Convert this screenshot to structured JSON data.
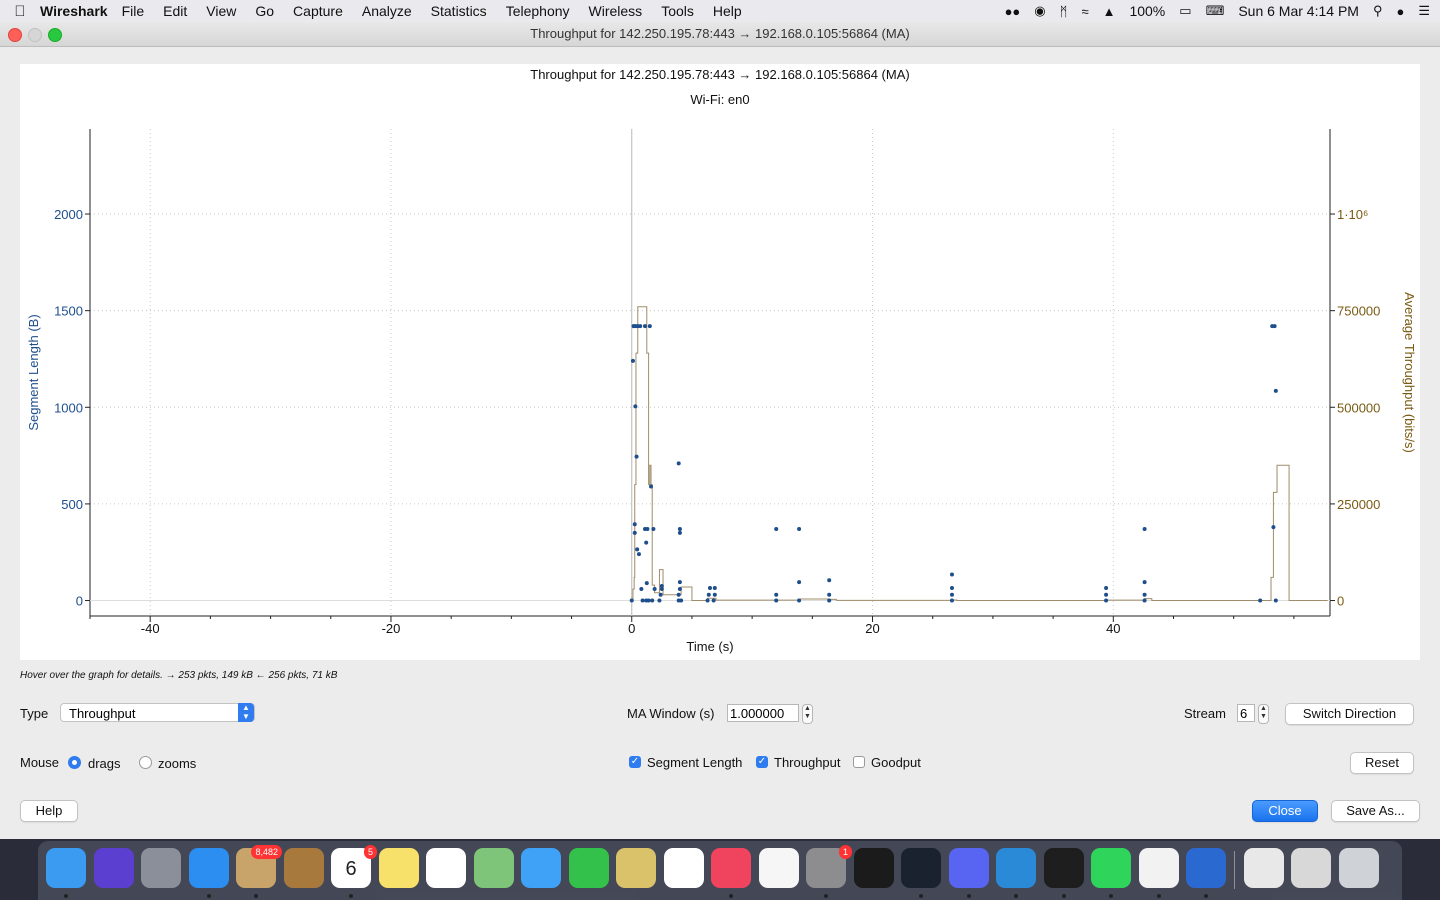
{
  "menubar": {
    "app_name": "Wireshark",
    "items": [
      "File",
      "Edit",
      "View",
      "Go",
      "Capture",
      "Analyze",
      "Statistics",
      "Telephony",
      "Wireless",
      "Tools",
      "Help"
    ],
    "battery": "100%",
    "datetime": "Sun 6 Mar  4:14 PM"
  },
  "window": {
    "title": "Throughput for 142.250.195.78:443 → 192.168.0.105:56864 (MA)"
  },
  "chart_data": {
    "type": "scatter",
    "title": "Throughput for 142.250.195.78:443 → 192.168.0.105:56864 (MA)",
    "subtitle": "Wi-Fi: en0",
    "xlabel": "Time (s)",
    "ylabel": "Segment Length (B)",
    "y2label": "Average Throughput (bits/s)",
    "xlim": [
      -45,
      58
    ],
    "ylim": [
      -80,
      2440
    ],
    "y2lim": [
      -40000,
      1220000
    ],
    "x_ticks": [
      -40,
      -20,
      0,
      20,
      40
    ],
    "y_ticks": [
      0,
      500,
      1000,
      1500,
      2000
    ],
    "y2_ticks": [
      0,
      250000,
      500000,
      750000
    ],
    "y2_tick_labels": [
      "0",
      "250000",
      "500000",
      "750000",
      "1·10⁶"
    ],
    "y2_tick_values_all": [
      0,
      250000,
      500000,
      750000,
      1000000
    ],
    "grid": true,
    "colors": {
      "segment": "#1f4e8c",
      "throughput": "#a08c6a",
      "y2axis": "#7a5a12"
    },
    "series": [
      {
        "name": "Segment Length",
        "axis": "left",
        "points": [
          [
            0.0,
            0
          ],
          [
            0.1,
            1240
          ],
          [
            0.15,
            1420
          ],
          [
            0.2,
            1420
          ],
          [
            0.25,
            350
          ],
          [
            0.25,
            395
          ],
          [
            0.3,
            1005
          ],
          [
            0.35,
            1420
          ],
          [
            0.4,
            745
          ],
          [
            0.5,
            1420
          ],
          [
            0.45,
            265
          ],
          [
            0.6,
            240
          ],
          [
            0.7,
            1420
          ],
          [
            0.8,
            60
          ],
          [
            0.9,
            0
          ],
          [
            1.1,
            1420
          ],
          [
            1.1,
            370
          ],
          [
            1.2,
            0
          ],
          [
            1.2,
            300
          ],
          [
            1.25,
            90
          ],
          [
            1.3,
            370
          ],
          [
            1.4,
            0
          ],
          [
            1.5,
            1420
          ],
          [
            1.6,
            590
          ],
          [
            1.7,
            0
          ],
          [
            1.8,
            370
          ],
          [
            1.9,
            60
          ],
          [
            2.3,
            0
          ],
          [
            2.4,
            30
          ],
          [
            2.5,
            60
          ],
          [
            2.5,
            75
          ],
          [
            3.9,
            0
          ],
          [
            3.9,
            30
          ],
          [
            4.0,
            60
          ],
          [
            4.0,
            95
          ],
          [
            4.0,
            370
          ],
          [
            4.0,
            350
          ],
          [
            3.9,
            710
          ],
          [
            4.1,
            0
          ],
          [
            6.3,
            0
          ],
          [
            6.4,
            30
          ],
          [
            6.5,
            65
          ],
          [
            6.8,
            0
          ],
          [
            6.9,
            30
          ],
          [
            6.9,
            65
          ],
          [
            12.0,
            0
          ],
          [
            12.0,
            30
          ],
          [
            12.0,
            370
          ],
          [
            13.9,
            0
          ],
          [
            13.9,
            95
          ],
          [
            13.9,
            370
          ],
          [
            16.4,
            0
          ],
          [
            16.4,
            30
          ],
          [
            16.4,
            105
          ],
          [
            26.6,
            0
          ],
          [
            26.6,
            30
          ],
          [
            26.6,
            65
          ],
          [
            26.6,
            135
          ],
          [
            39.4,
            0
          ],
          [
            39.4,
            30
          ],
          [
            39.4,
            65
          ],
          [
            42.6,
            0
          ],
          [
            42.6,
            30
          ],
          [
            42.6,
            95
          ],
          [
            42.6,
            370
          ],
          [
            52.2,
            0
          ],
          [
            53.2,
            1420
          ],
          [
            53.4,
            1420
          ],
          [
            53.3,
            380
          ],
          [
            53.5,
            1085
          ],
          [
            53.5,
            0
          ]
        ]
      },
      {
        "name": "Throughput",
        "axis": "right",
        "points": [
          [
            0,
            0
          ],
          [
            0.1,
            30000
          ],
          [
            0.2,
            60000
          ],
          [
            0.25,
            300000
          ],
          [
            0.35,
            640000
          ],
          [
            0.5,
            760000
          ],
          [
            0.8,
            760000
          ],
          [
            1.1,
            760000
          ],
          [
            1.25,
            640000
          ],
          [
            1.4,
            300000
          ],
          [
            1.5,
            350000
          ],
          [
            1.6,
            300000
          ],
          [
            1.7,
            40000
          ],
          [
            1.9,
            20000
          ],
          [
            2.3,
            80000
          ],
          [
            2.6,
            15000
          ],
          [
            3.9,
            15000
          ],
          [
            4.1,
            35000
          ],
          [
            5,
            0
          ],
          [
            6.3,
            6000
          ],
          [
            7,
            1000
          ],
          [
            12,
            1000
          ],
          [
            14,
            4000
          ],
          [
            16.4,
            3000
          ],
          [
            17,
            500
          ],
          [
            26.6,
            1500
          ],
          [
            27,
            0
          ],
          [
            39.4,
            1000
          ],
          [
            42.6,
            5000
          ],
          [
            43.2,
            0
          ],
          [
            52.8,
            0
          ],
          [
            53.1,
            60000
          ],
          [
            53.3,
            280000
          ],
          [
            53.6,
            350000
          ],
          [
            54.5,
            350000
          ],
          [
            54.6,
            0
          ],
          [
            57.8,
            0
          ]
        ]
      }
    ]
  },
  "status": {
    "hover_text": "Hover over the graph for details. → 253 pkts, 149 kB ← 256 pkts, 71 kB"
  },
  "controls": {
    "type_label": "Type",
    "type_value": "Throughput",
    "ma_window_label": "MA Window (s)",
    "ma_window_value": "1.000000",
    "stream_label": "Stream",
    "stream_value": "6",
    "switch_direction": "Switch Direction",
    "mouse_label": "Mouse",
    "mouse_drags": "drags",
    "mouse_zooms": "zooms",
    "mouse_selected": "drags",
    "segment_length": "Segment Length",
    "segment_length_checked": true,
    "throughput": "Throughput",
    "throughput_checked": true,
    "goodput": "Goodput",
    "goodput_checked": false,
    "reset": "Reset",
    "help": "Help",
    "close": "Close",
    "save_as": "Save As..."
  },
  "dock": {
    "items": [
      {
        "name": "finder",
        "color": "#3a9bf0",
        "running": true
      },
      {
        "name": "siri",
        "color": "#5b3fd1",
        "running": false
      },
      {
        "name": "launchpad",
        "color": "#8a8f99",
        "running": false
      },
      {
        "name": "safari",
        "color": "#2c8ef0",
        "running": true
      },
      {
        "name": "mail",
        "color": "#c8a46a",
        "running": true,
        "badge": "8,482"
      },
      {
        "name": "contacts",
        "color": "#a7793c",
        "running": false
      },
      {
        "name": "calendar",
        "color": "#ffffff",
        "running": true,
        "badge": "5",
        "text": "6"
      },
      {
        "name": "notes",
        "color": "#f7e16a",
        "running": false
      },
      {
        "name": "reminders",
        "color": "#ffffff",
        "running": false
      },
      {
        "name": "maps",
        "color": "#7ec57a",
        "running": false
      },
      {
        "name": "messages",
        "color": "#3fa2f7",
        "running": false
      },
      {
        "name": "facetime",
        "color": "#33c04b",
        "running": false
      },
      {
        "name": "preview",
        "color": "#d9c26a",
        "running": false
      },
      {
        "name": "numbers",
        "color": "#ffffff",
        "running": false
      },
      {
        "name": "music",
        "color": "#f0435d",
        "running": true
      },
      {
        "name": "photos",
        "color": "#f6f6f6",
        "running": false
      },
      {
        "name": "system-preferences",
        "color": "#8d8d90",
        "running": true,
        "badge": "1"
      },
      {
        "name": "activity-monitor",
        "color": "#1b1b1b",
        "running": false
      },
      {
        "name": "webex",
        "color": "#1a2230",
        "running": true
      },
      {
        "name": "discord",
        "color": "#5865f2",
        "running": true
      },
      {
        "name": "vscode",
        "color": "#2a8ad8",
        "running": true
      },
      {
        "name": "terminal",
        "color": "#1e1e1e",
        "running": true
      },
      {
        "name": "whatsapp",
        "color": "#2fd45b",
        "running": true
      },
      {
        "name": "chrome",
        "color": "#f2f2f2",
        "running": true
      },
      {
        "name": "wireshark",
        "color": "#2a6ad0",
        "running": true
      },
      {
        "name": "downloads-stack",
        "color": "#e8e8e8",
        "running": false
      },
      {
        "name": "screenshots-stack",
        "color": "#d8d8d8",
        "running": false
      },
      {
        "name": "trash",
        "color": "#cfd3d8",
        "running": false
      }
    ]
  }
}
